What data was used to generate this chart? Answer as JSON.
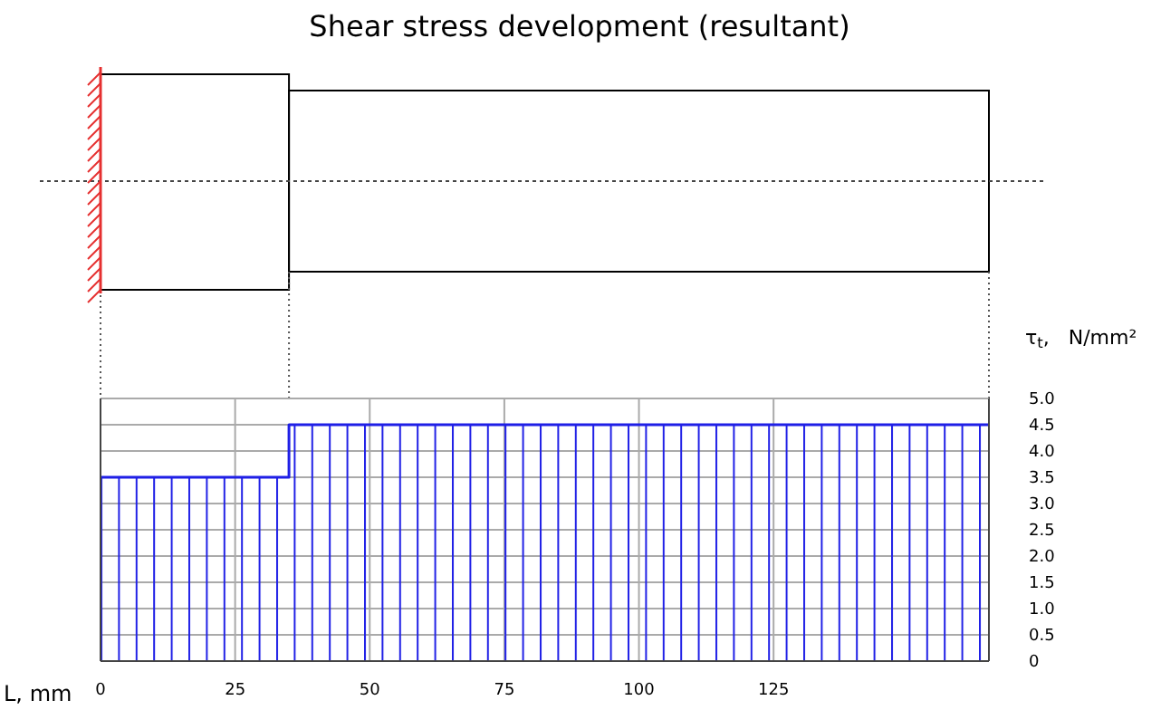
{
  "chart_data": {
    "type": "step",
    "title": "Shear stress development (resultant)",
    "xlabel": "L, mm",
    "ylabel": "τ$_{t}$,   N/mm²",
    "x": [
      0,
      35,
      165
    ],
    "series": [
      {
        "color": "#1f1fe6",
        "values": [
          3.5,
          4.5,
          4.5
        ]
      }
    ],
    "xlim": [
      0,
      165
    ],
    "xticks": [
      0,
      25,
      50,
      75,
      100,
      125
    ],
    "ylim": [
      0,
      5
    ],
    "yticks": [
      0,
      0.5,
      {
        "value": 1,
        "label": "1.0"
      },
      1.5,
      {
        "value": 2,
        "label": "2.0"
      },
      2.5,
      {
        "value": 3,
        "label": "3.0"
      },
      3.5,
      {
        "value": 4,
        "label": "4.0"
      },
      4.5,
      {
        "value": 5,
        "label": "5.0"
      }
    ],
    "grid": true
  }
}
